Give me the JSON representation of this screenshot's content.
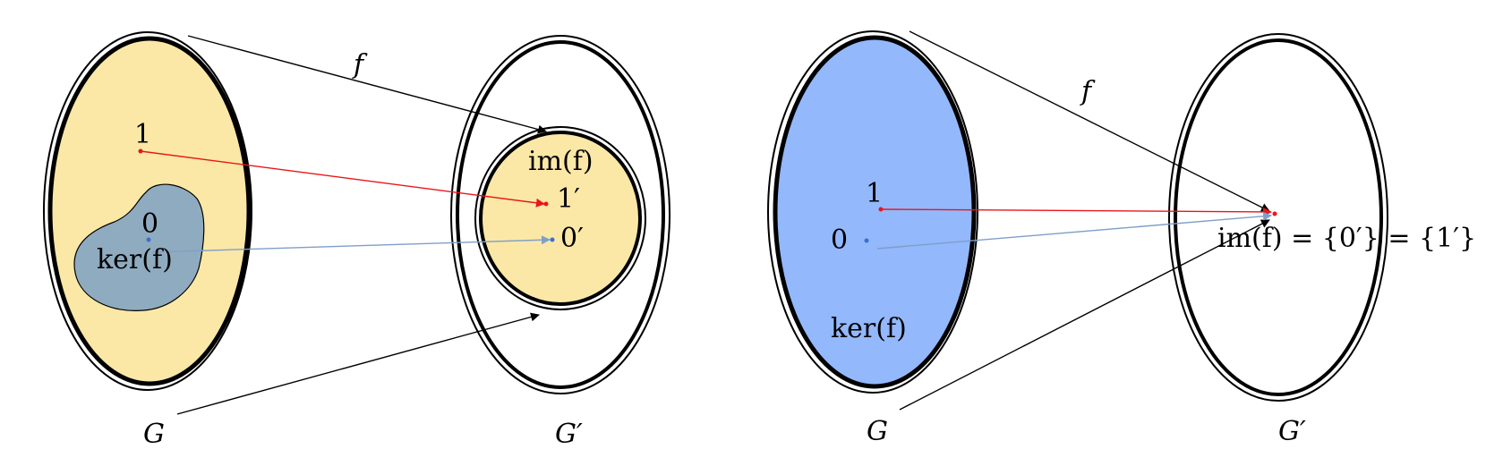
{
  "colors": {
    "domain_fill_left": "#fbe8a6",
    "kernel_fill_left": "#8fabc0",
    "image_fill_left": "#fbe8a6",
    "domain_fill_right": "#93b8fb",
    "identity_arrow": "#e8161b",
    "zero_arrow": "#7f9fc8",
    "map_arrow": "#000000"
  },
  "panels": {
    "left": {
      "map_label": "f",
      "domain_label": "G",
      "codomain_label": "G′",
      "identity_label": "1",
      "zero_label": "0",
      "kernel_label": "ker(f)",
      "image_label": "im(f)",
      "image_identity_label": "1′",
      "image_zero_label": "0′"
    },
    "right": {
      "map_label": "f",
      "domain_label": "G",
      "codomain_label": "G′",
      "identity_label": "1",
      "zero_label": "0",
      "kernel_label": "ker(f)",
      "image_label": "im(f) = {0′} = {1′}"
    }
  }
}
